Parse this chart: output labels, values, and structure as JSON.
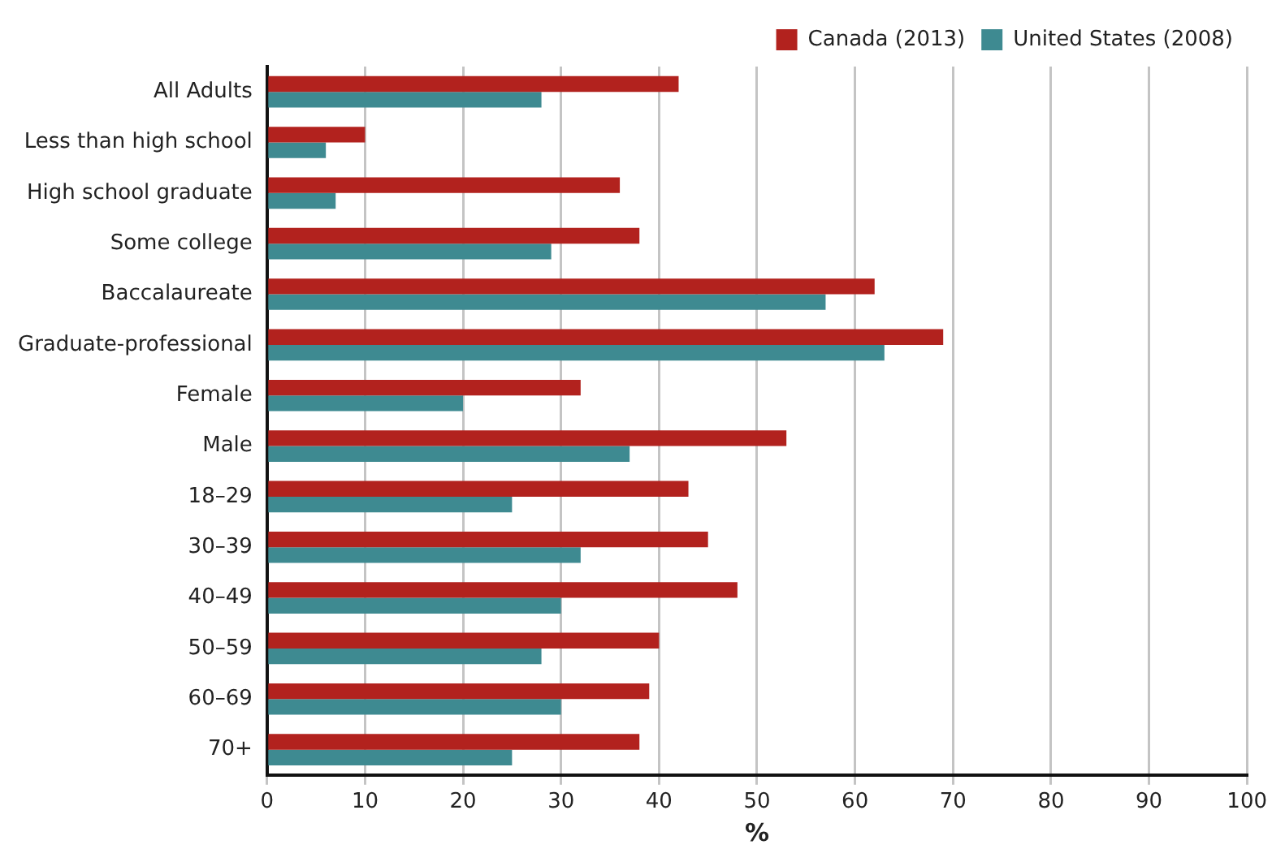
{
  "chart_data": {
    "type": "bar",
    "orientation": "horizontal",
    "xlabel": "%",
    "categories": [
      "All Adults",
      "Less than high school",
      "High school graduate",
      "Some college",
      "Baccalaureate",
      "Graduate-professional",
      "Female",
      "Male",
      "18–29",
      "30–39",
      "40–49",
      "50–59",
      "60–69",
      "70+"
    ],
    "series": [
      {
        "name": "Canada (2013)",
        "color": "#b2221e",
        "values": [
          42,
          10,
          36,
          38,
          62,
          69,
          32,
          53,
          43,
          45,
          48,
          40,
          39,
          38
        ]
      },
      {
        "name": "United States (2008)",
        "color": "#3e8a91",
        "values": [
          28,
          6,
          7,
          29,
          57,
          63,
          20,
          37,
          25,
          32,
          30,
          28,
          30,
          25
        ]
      }
    ],
    "xlim": [
      0,
      100
    ],
    "xticks": [
      0,
      10,
      20,
      30,
      40,
      50,
      60,
      70,
      80,
      90,
      100
    ],
    "grid": "x",
    "legend": "top right"
  }
}
